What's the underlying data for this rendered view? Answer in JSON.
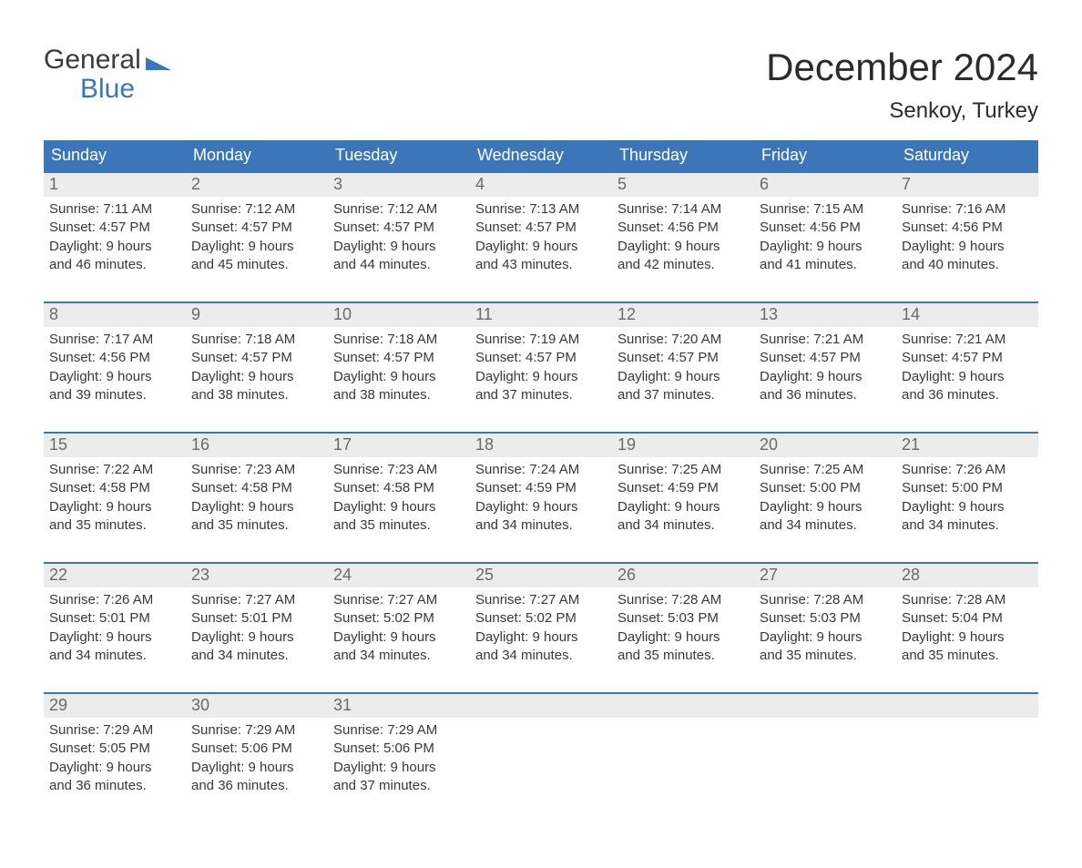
{
  "logo": {
    "top": "General",
    "bottom": "Blue"
  },
  "month_title": "December 2024",
  "location": "Senkoy, Turkey",
  "colors": {
    "header_bg": "#3a76b8",
    "header_text": "#ffffff",
    "daynum_bg": "#ececec",
    "daynum_text": "#6a6a6a",
    "body_text": "#383838",
    "rule": "#3a76b8"
  },
  "typography": {
    "title_fontsize": 42,
    "location_fontsize": 24,
    "dow_fontsize": 18,
    "daynum_fontsize": 18,
    "body_fontsize": 15
  },
  "days_of_week": [
    "Sunday",
    "Monday",
    "Tuesday",
    "Wednesday",
    "Thursday",
    "Friday",
    "Saturday"
  ],
  "weeks": [
    [
      {
        "n": "1",
        "sunrise": "Sunrise: 7:11 AM",
        "sunset": "Sunset: 4:57 PM",
        "day1": "Daylight: 9 hours",
        "day2": "and 46 minutes."
      },
      {
        "n": "2",
        "sunrise": "Sunrise: 7:12 AM",
        "sunset": "Sunset: 4:57 PM",
        "day1": "Daylight: 9 hours",
        "day2": "and 45 minutes."
      },
      {
        "n": "3",
        "sunrise": "Sunrise: 7:12 AM",
        "sunset": "Sunset: 4:57 PM",
        "day1": "Daylight: 9 hours",
        "day2": "and 44 minutes."
      },
      {
        "n": "4",
        "sunrise": "Sunrise: 7:13 AM",
        "sunset": "Sunset: 4:57 PM",
        "day1": "Daylight: 9 hours",
        "day2": "and 43 minutes."
      },
      {
        "n": "5",
        "sunrise": "Sunrise: 7:14 AM",
        "sunset": "Sunset: 4:56 PM",
        "day1": "Daylight: 9 hours",
        "day2": "and 42 minutes."
      },
      {
        "n": "6",
        "sunrise": "Sunrise: 7:15 AM",
        "sunset": "Sunset: 4:56 PM",
        "day1": "Daylight: 9 hours",
        "day2": "and 41 minutes."
      },
      {
        "n": "7",
        "sunrise": "Sunrise: 7:16 AM",
        "sunset": "Sunset: 4:56 PM",
        "day1": "Daylight: 9 hours",
        "day2": "and 40 minutes."
      }
    ],
    [
      {
        "n": "8",
        "sunrise": "Sunrise: 7:17 AM",
        "sunset": "Sunset: 4:56 PM",
        "day1": "Daylight: 9 hours",
        "day2": "and 39 minutes."
      },
      {
        "n": "9",
        "sunrise": "Sunrise: 7:18 AM",
        "sunset": "Sunset: 4:57 PM",
        "day1": "Daylight: 9 hours",
        "day2": "and 38 minutes."
      },
      {
        "n": "10",
        "sunrise": "Sunrise: 7:18 AM",
        "sunset": "Sunset: 4:57 PM",
        "day1": "Daylight: 9 hours",
        "day2": "and 38 minutes."
      },
      {
        "n": "11",
        "sunrise": "Sunrise: 7:19 AM",
        "sunset": "Sunset: 4:57 PM",
        "day1": "Daylight: 9 hours",
        "day2": "and 37 minutes."
      },
      {
        "n": "12",
        "sunrise": "Sunrise: 7:20 AM",
        "sunset": "Sunset: 4:57 PM",
        "day1": "Daylight: 9 hours",
        "day2": "and 37 minutes."
      },
      {
        "n": "13",
        "sunrise": "Sunrise: 7:21 AM",
        "sunset": "Sunset: 4:57 PM",
        "day1": "Daylight: 9 hours",
        "day2": "and 36 minutes."
      },
      {
        "n": "14",
        "sunrise": "Sunrise: 7:21 AM",
        "sunset": "Sunset: 4:57 PM",
        "day1": "Daylight: 9 hours",
        "day2": "and 36 minutes."
      }
    ],
    [
      {
        "n": "15",
        "sunrise": "Sunrise: 7:22 AM",
        "sunset": "Sunset: 4:58 PM",
        "day1": "Daylight: 9 hours",
        "day2": "and 35 minutes."
      },
      {
        "n": "16",
        "sunrise": "Sunrise: 7:23 AM",
        "sunset": "Sunset: 4:58 PM",
        "day1": "Daylight: 9 hours",
        "day2": "and 35 minutes."
      },
      {
        "n": "17",
        "sunrise": "Sunrise: 7:23 AM",
        "sunset": "Sunset: 4:58 PM",
        "day1": "Daylight: 9 hours",
        "day2": "and 35 minutes."
      },
      {
        "n": "18",
        "sunrise": "Sunrise: 7:24 AM",
        "sunset": "Sunset: 4:59 PM",
        "day1": "Daylight: 9 hours",
        "day2": "and 34 minutes."
      },
      {
        "n": "19",
        "sunrise": "Sunrise: 7:25 AM",
        "sunset": "Sunset: 4:59 PM",
        "day1": "Daylight: 9 hours",
        "day2": "and 34 minutes."
      },
      {
        "n": "20",
        "sunrise": "Sunrise: 7:25 AM",
        "sunset": "Sunset: 5:00 PM",
        "day1": "Daylight: 9 hours",
        "day2": "and 34 minutes."
      },
      {
        "n": "21",
        "sunrise": "Sunrise: 7:26 AM",
        "sunset": "Sunset: 5:00 PM",
        "day1": "Daylight: 9 hours",
        "day2": "and 34 minutes."
      }
    ],
    [
      {
        "n": "22",
        "sunrise": "Sunrise: 7:26 AM",
        "sunset": "Sunset: 5:01 PM",
        "day1": "Daylight: 9 hours",
        "day2": "and 34 minutes."
      },
      {
        "n": "23",
        "sunrise": "Sunrise: 7:27 AM",
        "sunset": "Sunset: 5:01 PM",
        "day1": "Daylight: 9 hours",
        "day2": "and 34 minutes."
      },
      {
        "n": "24",
        "sunrise": "Sunrise: 7:27 AM",
        "sunset": "Sunset: 5:02 PM",
        "day1": "Daylight: 9 hours",
        "day2": "and 34 minutes."
      },
      {
        "n": "25",
        "sunrise": "Sunrise: 7:27 AM",
        "sunset": "Sunset: 5:02 PM",
        "day1": "Daylight: 9 hours",
        "day2": "and 34 minutes."
      },
      {
        "n": "26",
        "sunrise": "Sunrise: 7:28 AM",
        "sunset": "Sunset: 5:03 PM",
        "day1": "Daylight: 9 hours",
        "day2": "and 35 minutes."
      },
      {
        "n": "27",
        "sunrise": "Sunrise: 7:28 AM",
        "sunset": "Sunset: 5:03 PM",
        "day1": "Daylight: 9 hours",
        "day2": "and 35 minutes."
      },
      {
        "n": "28",
        "sunrise": "Sunrise: 7:28 AM",
        "sunset": "Sunset: 5:04 PM",
        "day1": "Daylight: 9 hours",
        "day2": "and 35 minutes."
      }
    ],
    [
      {
        "n": "29",
        "sunrise": "Sunrise: 7:29 AM",
        "sunset": "Sunset: 5:05 PM",
        "day1": "Daylight: 9 hours",
        "day2": "and 36 minutes."
      },
      {
        "n": "30",
        "sunrise": "Sunrise: 7:29 AM",
        "sunset": "Sunset: 5:06 PM",
        "day1": "Daylight: 9 hours",
        "day2": "and 36 minutes."
      },
      {
        "n": "31",
        "sunrise": "Sunrise: 7:29 AM",
        "sunset": "Sunset: 5:06 PM",
        "day1": "Daylight: 9 hours",
        "day2": "and 37 minutes."
      },
      {
        "n": "",
        "sunrise": "",
        "sunset": "",
        "day1": "",
        "day2": ""
      },
      {
        "n": "",
        "sunrise": "",
        "sunset": "",
        "day1": "",
        "day2": ""
      },
      {
        "n": "",
        "sunrise": "",
        "sunset": "",
        "day1": "",
        "day2": ""
      },
      {
        "n": "",
        "sunrise": "",
        "sunset": "",
        "day1": "",
        "day2": ""
      }
    ]
  ]
}
